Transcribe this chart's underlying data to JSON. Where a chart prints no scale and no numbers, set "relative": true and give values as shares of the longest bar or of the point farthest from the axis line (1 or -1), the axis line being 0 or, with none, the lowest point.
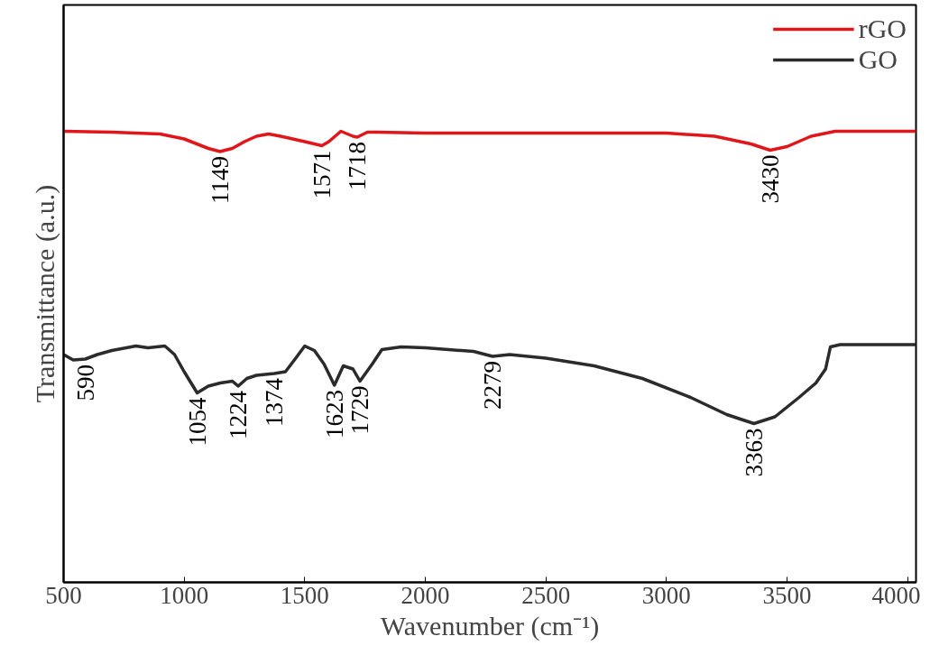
{
  "chart_data": {
    "type": "line",
    "xlabel": "Wavenumber (cm⁻¹)",
    "ylabel": "Transmittance (a.u.)",
    "relative": true,
    "xlim": [
      500,
      4035
    ],
    "xticks": [
      500,
      1000,
      1500,
      2000,
      2500,
      3000,
      3500,
      4000
    ],
    "grid": false,
    "legend": "top right",
    "marker": "none",
    "line_style": "solid",
    "series": [
      {
        "name": "rGO",
        "color": "#e0161b",
        "x": [
          500,
          700,
          900,
          1000,
          1100,
          1149,
          1200,
          1250,
          1300,
          1350,
          1400,
          1500,
          1571,
          1600,
          1650,
          1700,
          1718,
          1760,
          1800,
          2000,
          2500,
          3000,
          3200,
          3350,
          3430,
          3500,
          3600,
          3700,
          4035
        ],
        "values": [
          1.0,
          0.998,
          0.994,
          0.983,
          0.962,
          0.955,
          0.962,
          0.977,
          0.989,
          0.994,
          0.989,
          0.977,
          0.968,
          0.977,
          1.0,
          0.989,
          0.987,
          0.998,
          0.998,
          0.996,
          0.996,
          0.996,
          0.989,
          0.972,
          0.958,
          0.966,
          0.989,
          1.0,
          1.0
        ]
      },
      {
        "name": "GO",
        "color": "#2b2b2b",
        "x": [
          500,
          540,
          590,
          640,
          700,
          800,
          850,
          920,
          960,
          1000,
          1054,
          1100,
          1150,
          1200,
          1224,
          1260,
          1300,
          1374,
          1420,
          1460,
          1500,
          1540,
          1580,
          1623,
          1660,
          1700,
          1729,
          1780,
          1820,
          1900,
          2000,
          2200,
          2250,
          2279,
          2350,
          2500,
          2700,
          2900,
          3100,
          3250,
          3363,
          3450,
          3550,
          3620,
          3660,
          3680,
          3720,
          4035
        ],
        "values": [
          0.505,
          0.493,
          0.495,
          0.505,
          0.514,
          0.524,
          0.52,
          0.524,
          0.505,
          0.467,
          0.42,
          0.435,
          0.442,
          0.446,
          0.435,
          0.452,
          0.459,
          0.463,
          0.467,
          0.495,
          0.524,
          0.514,
          0.484,
          0.437,
          0.48,
          0.473,
          0.446,
          0.484,
          0.516,
          0.522,
          0.52,
          0.512,
          0.505,
          0.501,
          0.505,
          0.497,
          0.48,
          0.452,
          0.41,
          0.372,
          0.352,
          0.367,
          0.41,
          0.442,
          0.473,
          0.522,
          0.527,
          0.527
        ]
      }
    ],
    "annotations": [
      {
        "text": "1149",
        "x": 1149,
        "y": 0.955
      },
      {
        "text": "1571",
        "x": 1571,
        "y": 0.968
      },
      {
        "text": "1718",
        "x": 1718,
        "y": 0.987
      },
      {
        "text": "3430",
        "x": 3430,
        "y": 0.958
      },
      {
        "text": "590",
        "x": 590,
        "y": 0.493
      },
      {
        "text": "1054",
        "x": 1054,
        "y": 0.42
      },
      {
        "text": "1224",
        "x": 1224,
        "y": 0.435
      },
      {
        "text": "1374",
        "x": 1374,
        "y": 0.463
      },
      {
        "text": "1623",
        "x": 1623,
        "y": 0.437
      },
      {
        "text": "1729",
        "x": 1729,
        "y": 0.446
      },
      {
        "text": "2279",
        "x": 2279,
        "y": 0.501
      },
      {
        "text": "3363",
        "x": 3363,
        "y": 0.352
      }
    ]
  }
}
